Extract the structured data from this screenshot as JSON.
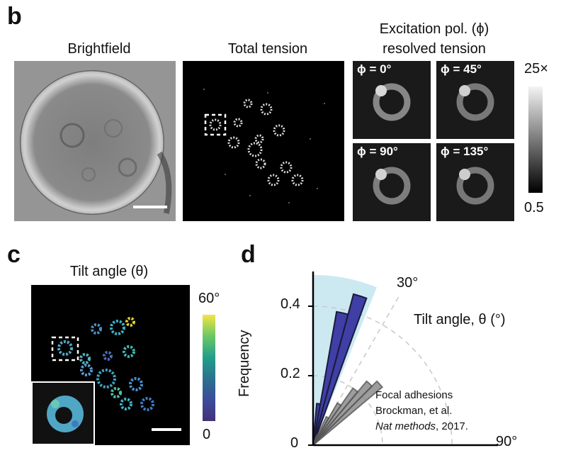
{
  "panel_b": {
    "letter": "b",
    "brightfield_title": "Brightfield",
    "total_tension_title": "Total tension",
    "excitation_title_line1": "Excitation pol. (ϕ)",
    "excitation_title_line2": "resolved tension",
    "phi_labels": [
      "ϕ = 0°",
      "ϕ = 45°",
      "ϕ = 90°",
      "ϕ = 135°"
    ],
    "colorbar_max": "25×",
    "colorbar_min": "0.5"
  },
  "panel_c": {
    "letter": "c",
    "title": "Tilt angle (θ)",
    "colorbar_max": "60°",
    "colorbar_min": "0"
  },
  "panel_d": {
    "letter": "d",
    "ylabel": "Frequency",
    "ytick_labels": [
      "0.4",
      "0.2",
      "0"
    ],
    "angle_labels": [
      "30°",
      "90°"
    ],
    "radial_label": "Tilt angle, θ (°)",
    "legend_line1": "Focal adhesions",
    "legend_line2": "Brockman, et al.",
    "legend_line3_italic": "Nat methods",
    "legend_line3_rest": ", 2017."
  },
  "chart_data": {
    "type": "polar-histogram",
    "ylabel": "Frequency",
    "angle_range_deg": [
      0,
      90
    ],
    "radial_ticks": [
      0,
      0.2,
      0.4
    ],
    "angular_ticks_deg": [
      30,
      90
    ],
    "series": [
      {
        "name": "",
        "color": "#3f3fa6",
        "bins_deg": [
          [
            0,
            5
          ],
          [
            5,
            10
          ],
          [
            10,
            15
          ],
          [
            15,
            20
          ]
        ],
        "values": [
          0.03,
          0.12,
          0.39,
          0.45
        ]
      },
      {
        "name": "Focal adhesions",
        "color": "#8c8c8c",
        "bins_deg": [
          [
            20,
            25
          ],
          [
            25,
            30
          ],
          [
            30,
            35
          ],
          [
            35,
            40
          ],
          [
            40,
            45
          ],
          [
            45,
            50
          ]
        ],
        "values": [
          0.03,
          0.09,
          0.14,
          0.2,
          0.24,
          0.26
        ]
      }
    ],
    "highlight_sector_deg": [
      0,
      22
    ],
    "highlight_radius": 0.49,
    "highlight_color": "#cce9f2"
  }
}
